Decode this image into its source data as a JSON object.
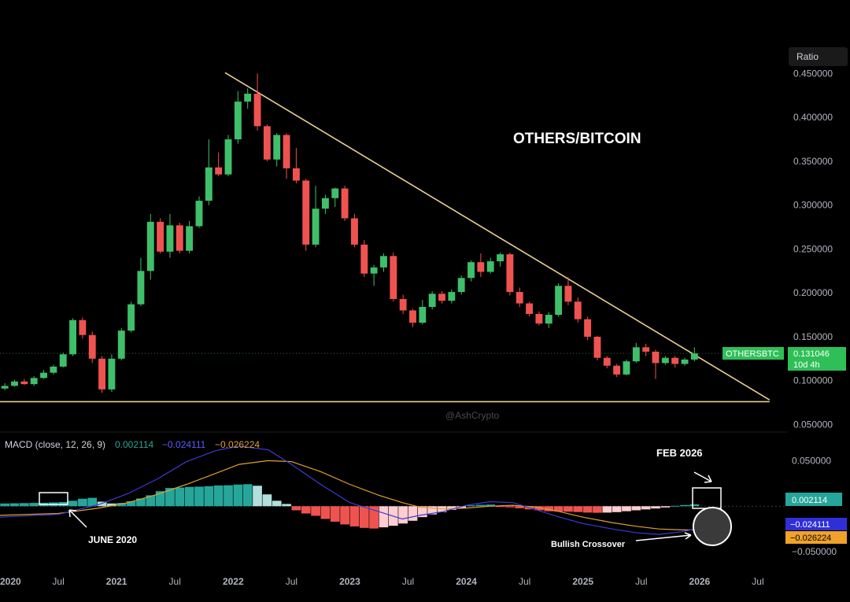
{
  "colors": {
    "background": "#000000",
    "up": "#26a69a",
    "up_candle": "#3fbf6a",
    "down": "#ef5350",
    "trendline": "#e8cf8f",
    "macd_line": "#3b3bd6",
    "signal_line": "#e0a030",
    "hist_up_strong": "#26a69a",
    "hist_up_weak": "#b2dfdb",
    "hist_down_strong": "#ef5350",
    "hist_down_weak": "#ffcdd2",
    "grid_text": "#b2b5be",
    "white": "#ffffff"
  },
  "chart_data": [
    {
      "type": "candlestick",
      "title": "OTHERS/BITCOIN",
      "symbol": "OTHERSBTC",
      "last_value": "0.131046",
      "countdown": "10d 4h",
      "scale_label": "Ratio",
      "watermark": "@AshCrypto",
      "y_tick_labels": [
        "0.450000",
        "0.400000",
        "0.350000",
        "0.300000",
        "0.250000",
        "0.200000",
        "0.150000",
        "0.100000",
        "0.050000"
      ],
      "y_ticks": [
        0.45,
        0.4,
        0.35,
        0.3,
        0.25,
        0.2,
        0.15,
        0.1,
        0.05
      ],
      "ylim": [
        0.045,
        0.48
      ],
      "x_tick_labels": [
        "2020",
        "Jul",
        "2021",
        "Jul",
        "2022",
        "Jul",
        "2023",
        "Jul",
        "2024",
        "Jul",
        "2025",
        "Jul",
        "2026",
        "Jul"
      ],
      "x_ticks": [
        2020.0,
        2020.5,
        2021.0,
        2021.5,
        2022.0,
        2022.5,
        2023.0,
        2023.5,
        2024.0,
        2024.5,
        2025.0,
        2025.5,
        2026.0,
        2026.5
      ],
      "xlim": [
        2020.0,
        2026.75
      ],
      "candle_start": 2020.0,
      "candle_step": 0.0833,
      "candles": [
        [
          0.091,
          0.097,
          0.089,
          0.094
        ],
        [
          0.094,
          0.101,
          0.093,
          0.099
        ],
        [
          0.099,
          0.102,
          0.095,
          0.096
        ],
        [
          0.096,
          0.105,
          0.094,
          0.103
        ],
        [
          0.103,
          0.112,
          0.102,
          0.109
        ],
        [
          0.109,
          0.118,
          0.107,
          0.116
        ],
        [
          0.116,
          0.132,
          0.115,
          0.13
        ],
        [
          0.13,
          0.171,
          0.128,
          0.169
        ],
        [
          0.169,
          0.172,
          0.148,
          0.152
        ],
        [
          0.152,
          0.156,
          0.12,
          0.125
        ],
        [
          0.125,
          0.128,
          0.086,
          0.09
        ],
        [
          0.09,
          0.13,
          0.087,
          0.125
        ],
        [
          0.125,
          0.16,
          0.123,
          0.157
        ],
        [
          0.157,
          0.19,
          0.155,
          0.187
        ],
        [
          0.187,
          0.24,
          0.185,
          0.225
        ],
        [
          0.225,
          0.29,
          0.215,
          0.281
        ],
        [
          0.281,
          0.285,
          0.245,
          0.247
        ],
        [
          0.247,
          0.29,
          0.24,
          0.277
        ],
        [
          0.277,
          0.28,
          0.245,
          0.248
        ],
        [
          0.248,
          0.282,
          0.245,
          0.276
        ],
        [
          0.276,
          0.31,
          0.274,
          0.305
        ],
        [
          0.305,
          0.375,
          0.3,
          0.343
        ],
        [
          0.343,
          0.36,
          0.333,
          0.335
        ],
        [
          0.335,
          0.38,
          0.333,
          0.375
        ],
        [
          0.375,
          0.43,
          0.37,
          0.418
        ],
        [
          0.418,
          0.433,
          0.41,
          0.427
        ],
        [
          0.427,
          0.45,
          0.385,
          0.39
        ],
        [
          0.39,
          0.392,
          0.35,
          0.352
        ],
        [
          0.352,
          0.382,
          0.344,
          0.38
        ],
        [
          0.38,
          0.382,
          0.33,
          0.342
        ],
        [
          0.342,
          0.365,
          0.325,
          0.328
        ],
        [
          0.328,
          0.33,
          0.248,
          0.255
        ],
        [
          0.255,
          0.322,
          0.252,
          0.296
        ],
        [
          0.296,
          0.312,
          0.29,
          0.308
        ],
        [
          0.308,
          0.32,
          0.298,
          0.319
        ],
        [
          0.319,
          0.322,
          0.282,
          0.285
        ],
        [
          0.285,
          0.29,
          0.252,
          0.255
        ],
        [
          0.255,
          0.26,
          0.218,
          0.222
        ],
        [
          0.222,
          0.232,
          0.208,
          0.229
        ],
        [
          0.229,
          0.245,
          0.224,
          0.242
        ],
        [
          0.242,
          0.246,
          0.19,
          0.193
        ],
        [
          0.193,
          0.198,
          0.176,
          0.18
        ],
        [
          0.18,
          0.182,
          0.161,
          0.166
        ],
        [
          0.166,
          0.192,
          0.164,
          0.184
        ],
        [
          0.184,
          0.202,
          0.181,
          0.199
        ],
        [
          0.199,
          0.202,
          0.188,
          0.191
        ],
        [
          0.191,
          0.204,
          0.188,
          0.201
        ],
        [
          0.201,
          0.22,
          0.198,
          0.217
        ],
        [
          0.217,
          0.237,
          0.213,
          0.235
        ],
        [
          0.235,
          0.245,
          0.218,
          0.224
        ],
        [
          0.224,
          0.24,
          0.222,
          0.236
        ],
        [
          0.236,
          0.246,
          0.23,
          0.244
        ],
        [
          0.244,
          0.246,
          0.197,
          0.201
        ],
        [
          0.201,
          0.206,
          0.184,
          0.188
        ],
        [
          0.188,
          0.19,
          0.173,
          0.176
        ],
        [
          0.176,
          0.179,
          0.163,
          0.165
        ],
        [
          0.165,
          0.178,
          0.16,
          0.175
        ],
        [
          0.175,
          0.211,
          0.173,
          0.208
        ],
        [
          0.208,
          0.218,
          0.186,
          0.19
        ],
        [
          0.19,
          0.195,
          0.166,
          0.17
        ],
        [
          0.17,
          0.173,
          0.146,
          0.15
        ],
        [
          0.15,
          0.151,
          0.123,
          0.126
        ],
        [
          0.126,
          0.128,
          0.114,
          0.117
        ],
        [
          0.117,
          0.119,
          0.104,
          0.107
        ],
        [
          0.107,
          0.124,
          0.106,
          0.122
        ],
        [
          0.122,
          0.143,
          0.12,
          0.138
        ],
        [
          0.138,
          0.142,
          0.128,
          0.133
        ],
        [
          0.133,
          0.135,
          0.102,
          0.12
        ],
        [
          0.12,
          0.128,
          0.118,
          0.126
        ],
        [
          0.126,
          0.128,
          0.115,
          0.119
        ],
        [
          0.119,
          0.126,
          0.117,
          0.124
        ],
        [
          0.124,
          0.138,
          0.122,
          0.131
        ]
      ],
      "trendlines": [
        {
          "from": [
            2021.93,
            0.451
          ],
          "to": [
            2026.6,
            0.078
          ]
        },
        {
          "from": [
            2020.0,
            0.076
          ],
          "to": [
            2026.6,
            0.076
          ]
        }
      ]
    },
    {
      "type": "bar",
      "title": "MACD",
      "indicator_label": "MACD (close, 12, 26, 9)",
      "values_text": [
        "0.002114",
        "−0.024111",
        "−0.026224"
      ],
      "y_tick_labels": [
        "0.050000",
        "−0.050000"
      ],
      "y_ticks": [
        0.05,
        -0.05
      ],
      "ylim": [
        -0.062,
        0.072
      ],
      "histogram": [
        0.003,
        0.0032,
        0.0034,
        0.0036,
        0.0038,
        0.0042,
        0.0046,
        0.006,
        0.0082,
        0.0092,
        0.005,
        0.003,
        0.0036,
        0.0055,
        0.0085,
        0.012,
        0.0165,
        0.02,
        0.0205,
        0.0212,
        0.0215,
        0.022,
        0.0228,
        0.023,
        0.0238,
        0.0242,
        0.0225,
        0.013,
        0.006,
        0.0025,
        -0.0045,
        -0.008,
        -0.0105,
        -0.014,
        -0.017,
        -0.02,
        -0.0222,
        -0.0238,
        -0.0245,
        -0.0232,
        -0.0215,
        -0.019,
        -0.016,
        -0.012,
        -0.009,
        -0.0065,
        -0.004,
        -0.002,
        0.001,
        0.0015,
        0.0018,
        -0.0004,
        -0.0012,
        -0.0022,
        -0.0034,
        -0.0045,
        -0.0055,
        -0.0058,
        -0.006,
        -0.0064,
        -0.007,
        -0.0072,
        -0.007,
        -0.0065,
        -0.0055,
        -0.0045,
        -0.0035,
        -0.0025,
        -0.0014,
        0.0004,
        0.0013,
        0.0021
      ],
      "macd_points": [
        [
          2020.0,
          -0.012
        ],
        [
          2020.5,
          -0.009
        ],
        [
          2020.85,
          0.002
        ],
        [
          2021.1,
          0.014
        ],
        [
          2021.35,
          0.03
        ],
        [
          2021.6,
          0.049
        ],
        [
          2021.85,
          0.061
        ],
        [
          2022.05,
          0.066
        ],
        [
          2022.3,
          0.062
        ],
        [
          2022.5,
          0.046
        ],
        [
          2022.75,
          0.024
        ],
        [
          2023.0,
          0.004
        ],
        [
          2023.25,
          -0.006
        ],
        [
          2023.45,
          -0.014
        ],
        [
          2023.6,
          -0.01
        ],
        [
          2023.8,
          -0.006
        ],
        [
          2024.0,
          0.001
        ],
        [
          2024.2,
          0.005
        ],
        [
          2024.4,
          0.004
        ],
        [
          2024.6,
          -0.004
        ],
        [
          2024.8,
          -0.012
        ],
        [
          2025.0,
          -0.019
        ],
        [
          2025.25,
          -0.025
        ],
        [
          2025.45,
          -0.029
        ],
        [
          2025.65,
          -0.031
        ],
        [
          2025.85,
          -0.028
        ],
        [
          2026.0,
          -0.024
        ]
      ],
      "signal_points": [
        [
          2020.0,
          -0.01
        ],
        [
          2020.5,
          -0.008
        ],
        [
          2020.85,
          -0.002
        ],
        [
          2021.1,
          0.004
        ],
        [
          2021.35,
          0.013
        ],
        [
          2021.6,
          0.024
        ],
        [
          2021.85,
          0.036
        ],
        [
          2022.05,
          0.046
        ],
        [
          2022.3,
          0.05
        ],
        [
          2022.5,
          0.049
        ],
        [
          2022.75,
          0.038
        ],
        [
          2023.0,
          0.024
        ],
        [
          2023.25,
          0.012
        ],
        [
          2023.45,
          0.004
        ],
        [
          2023.6,
          -0.001
        ],
        [
          2023.8,
          -0.003
        ],
        [
          2024.0,
          -0.002
        ],
        [
          2024.2,
          0.0
        ],
        [
          2024.4,
          0.001
        ],
        [
          2024.6,
          -0.001
        ],
        [
          2024.8,
          -0.006
        ],
        [
          2025.0,
          -0.012
        ],
        [
          2025.25,
          -0.018
        ],
        [
          2025.45,
          -0.022
        ],
        [
          2025.65,
          -0.025
        ],
        [
          2025.85,
          -0.026
        ],
        [
          2026.0,
          -0.026
        ]
      ],
      "annotations": [
        "JUNE 2020",
        "FEB 2026",
        "Bullish Crossover"
      ]
    }
  ]
}
